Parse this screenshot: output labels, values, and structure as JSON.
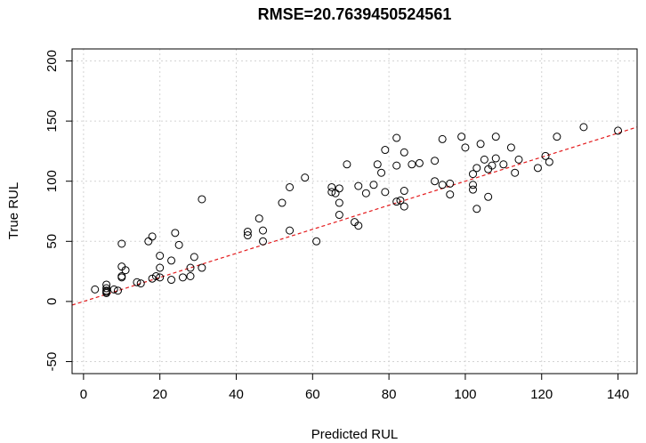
{
  "chart_data": {
    "type": "scatter",
    "title": "RMSE=20.7639450524561",
    "xlabel": "Predicted RUL",
    "ylabel": "True RUL",
    "xlim": [
      -3,
      145
    ],
    "ylim": [
      -60,
      210
    ],
    "xticks": [
      0,
      20,
      40,
      60,
      80,
      100,
      120,
      140
    ],
    "yticks": [
      -50,
      0,
      50,
      100,
      150,
      200
    ],
    "grid": true,
    "reference_line": {
      "slope": 1,
      "intercept": 0,
      "style": "dashed",
      "color": "#e41a1c"
    },
    "points": [
      {
        "x": 3,
        "y": 10
      },
      {
        "x": 6,
        "y": 14
      },
      {
        "x": 6,
        "y": 11
      },
      {
        "x": 6,
        "y": 9
      },
      {
        "x": 6,
        "y": 8
      },
      {
        "x": 6,
        "y": 7
      },
      {
        "x": 8,
        "y": 10
      },
      {
        "x": 9,
        "y": 9
      },
      {
        "x": 10,
        "y": 48
      },
      {
        "x": 10,
        "y": 29
      },
      {
        "x": 10,
        "y": 21
      },
      {
        "x": 10,
        "y": 20
      },
      {
        "x": 11,
        "y": 26
      },
      {
        "x": 14,
        "y": 16
      },
      {
        "x": 15,
        "y": 15
      },
      {
        "x": 17,
        "y": 50
      },
      {
        "x": 18,
        "y": 54
      },
      {
        "x": 18,
        "y": 19
      },
      {
        "x": 19,
        "y": 21
      },
      {
        "x": 20,
        "y": 38
      },
      {
        "x": 20,
        "y": 28
      },
      {
        "x": 20,
        "y": 20
      },
      {
        "x": 23,
        "y": 34
      },
      {
        "x": 23,
        "y": 18
      },
      {
        "x": 24,
        "y": 57
      },
      {
        "x": 25,
        "y": 47
      },
      {
        "x": 26,
        "y": 20
      },
      {
        "x": 28,
        "y": 28
      },
      {
        "x": 28,
        "y": 21
      },
      {
        "x": 29,
        "y": 37
      },
      {
        "x": 31,
        "y": 85
      },
      {
        "x": 31,
        "y": 28
      },
      {
        "x": 43,
        "y": 58
      },
      {
        "x": 43,
        "y": 55
      },
      {
        "x": 46,
        "y": 69
      },
      {
        "x": 47,
        "y": 59
      },
      {
        "x": 47,
        "y": 50
      },
      {
        "x": 52,
        "y": 82
      },
      {
        "x": 54,
        "y": 95
      },
      {
        "x": 54,
        "y": 59
      },
      {
        "x": 58,
        "y": 103
      },
      {
        "x": 61,
        "y": 50
      },
      {
        "x": 65,
        "y": 95
      },
      {
        "x": 65,
        "y": 91
      },
      {
        "x": 66,
        "y": 90
      },
      {
        "x": 67,
        "y": 94
      },
      {
        "x": 67,
        "y": 82
      },
      {
        "x": 67,
        "y": 72
      },
      {
        "x": 69,
        "y": 114
      },
      {
        "x": 71,
        "y": 66
      },
      {
        "x": 72,
        "y": 96
      },
      {
        "x": 72,
        "y": 63
      },
      {
        "x": 74,
        "y": 90
      },
      {
        "x": 76,
        "y": 97
      },
      {
        "x": 77,
        "y": 114
      },
      {
        "x": 78,
        "y": 107
      },
      {
        "x": 79,
        "y": 126
      },
      {
        "x": 79,
        "y": 91
      },
      {
        "x": 82,
        "y": 136
      },
      {
        "x": 82,
        "y": 113
      },
      {
        "x": 82,
        "y": 83
      },
      {
        "x": 83,
        "y": 84
      },
      {
        "x": 84,
        "y": 124
      },
      {
        "x": 84,
        "y": 92
      },
      {
        "x": 84,
        "y": 79
      },
      {
        "x": 86,
        "y": 114
      },
      {
        "x": 88,
        "y": 115
      },
      {
        "x": 92,
        "y": 117
      },
      {
        "x": 92,
        "y": 100
      },
      {
        "x": 94,
        "y": 135
      },
      {
        "x": 94,
        "y": 97
      },
      {
        "x": 96,
        "y": 98
      },
      {
        "x": 96,
        "y": 89
      },
      {
        "x": 99,
        "y": 137
      },
      {
        "x": 100,
        "y": 128
      },
      {
        "x": 102,
        "y": 106
      },
      {
        "x": 102,
        "y": 97
      },
      {
        "x": 102,
        "y": 93
      },
      {
        "x": 103,
        "y": 111
      },
      {
        "x": 103,
        "y": 77
      },
      {
        "x": 104,
        "y": 131
      },
      {
        "x": 105,
        "y": 118
      },
      {
        "x": 106,
        "y": 110
      },
      {
        "x": 106,
        "y": 87
      },
      {
        "x": 107,
        "y": 113
      },
      {
        "x": 108,
        "y": 137
      },
      {
        "x": 108,
        "y": 119
      },
      {
        "x": 110,
        "y": 114
      },
      {
        "x": 112,
        "y": 128
      },
      {
        "x": 113,
        "y": 107
      },
      {
        "x": 114,
        "y": 118
      },
      {
        "x": 119,
        "y": 111
      },
      {
        "x": 121,
        "y": 121
      },
      {
        "x": 122,
        "y": 116
      },
      {
        "x": 124,
        "y": 137
      },
      {
        "x": 131,
        "y": 145
      },
      {
        "x": 140,
        "y": 142
      }
    ]
  }
}
